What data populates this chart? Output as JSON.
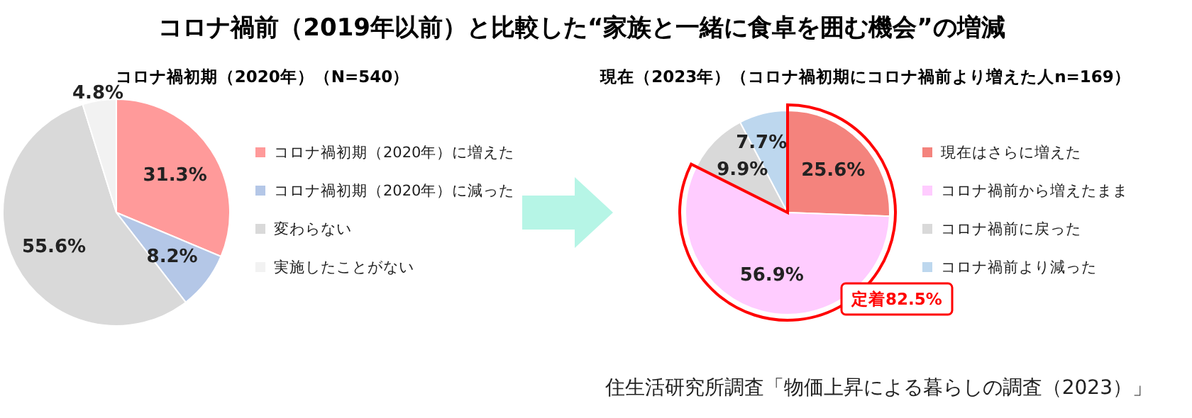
{
  "chart_data": [
    {
      "type": "pie",
      "title": "コロナ禍前（2019年以前）と比較した“家族と一緒に食卓を囲む機会”の増減",
      "subtitle": "コロナ禍初期（2020年）（N=540）",
      "categories": [
        "コロナ禍初期（2020年）に増えた",
        "コロナ禍初期（2020年）に減った",
        "変わらない",
        "実施したことがない"
      ],
      "values": [
        31.3,
        8.2,
        55.6,
        4.8
      ],
      "colors": [
        "#ff9a9a",
        "#b4c7e7",
        "#d9d9d9",
        "#f2f2f2"
      ],
      "value_labels": [
        "31.3%",
        "8.2%",
        "55.6%",
        "4.8%"
      ],
      "legend": "right",
      "annotations": [
        "住生活研究所調査「物価上昇による暮らしの調査（2023）」"
      ]
    },
    {
      "type": "pie",
      "title": "現在（2023年）（コロナ禍初期にコロナ禍前より増えた人n=169）",
      "categories": [
        "現在はさらに増えた",
        "コロナ禍前から増えたまま",
        "コロナ禍前に戻った",
        "コロナ禍前より減った"
      ],
      "values": [
        25.6,
        56.9,
        9.9,
        7.7
      ],
      "colors": [
        "#f4837d",
        "#ffccff",
        "#d9d9d9",
        "#bdd7ee"
      ],
      "value_labels": [
        "25.6%",
        "56.9%",
        "9.9%",
        "7.7%"
      ],
      "legend": "right",
      "annotations": [
        "定着82.5%"
      ]
    }
  ]
}
